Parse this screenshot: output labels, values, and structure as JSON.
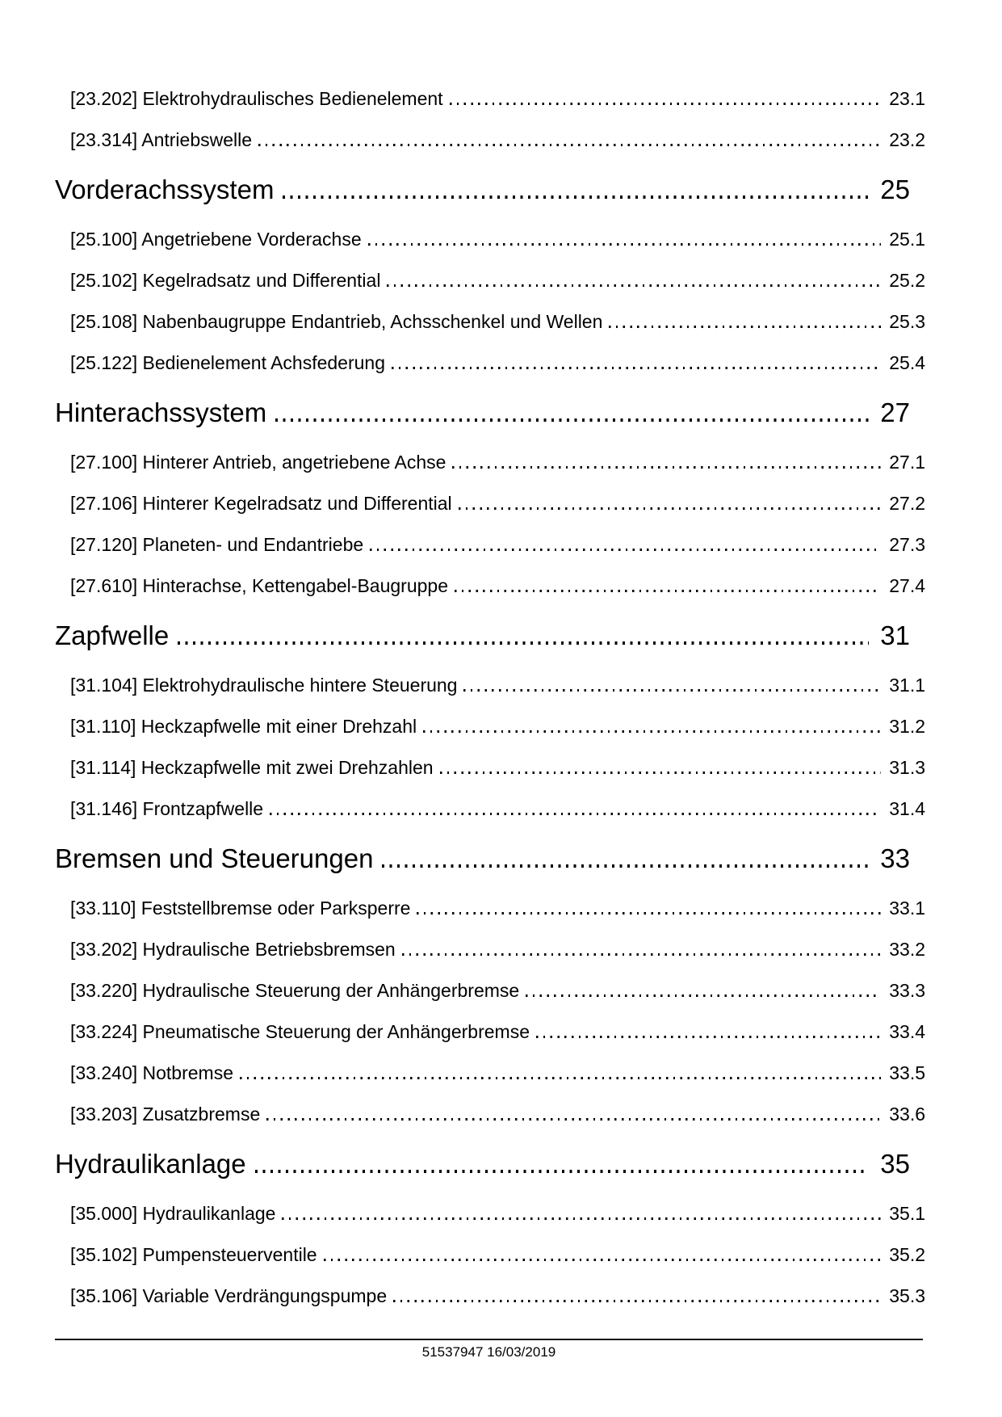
{
  "colors": {
    "text": "#000000",
    "background": "#ffffff",
    "footer_rule": "#141414"
  },
  "toc": {
    "items": [
      {
        "level": "entry",
        "label": "[23.202] Elektrohydraulisches Bedienelement",
        "page": "23.1"
      },
      {
        "level": "entry",
        "label": "[23.314] Antriebswelle",
        "page": "23.2"
      },
      {
        "level": "section",
        "label": "Vorderachssystem",
        "page": "25"
      },
      {
        "level": "entry",
        "label": "[25.100] Angetriebene Vorderachse",
        "page": "25.1"
      },
      {
        "level": "entry",
        "label": "[25.102] Kegelradsatz und Differential",
        "page": "25.2"
      },
      {
        "level": "entry",
        "label": "[25.108] Nabenbaugruppe Endantrieb, Achsschenkel und Wellen",
        "page": "25.3"
      },
      {
        "level": "entry",
        "label": "[25.122] Bedienelement Achsfederung",
        "page": "25.4"
      },
      {
        "level": "section",
        "label": "Hinterachssystem",
        "page": "27"
      },
      {
        "level": "entry",
        "label": "[27.100] Hinterer Antrieb, angetriebene Achse",
        "page": "27.1"
      },
      {
        "level": "entry",
        "label": "[27.106] Hinterer Kegelradsatz und Differential",
        "page": "27.2"
      },
      {
        "level": "entry",
        "label": "[27.120] Planeten- und Endantriebe",
        "page": "27.3"
      },
      {
        "level": "entry",
        "label": "[27.610] Hinterachse, Kettengabel-Baugruppe",
        "page": "27.4"
      },
      {
        "level": "section",
        "label": "Zapfwelle",
        "page": "31"
      },
      {
        "level": "entry",
        "label": "[31.104] Elektrohydraulische hintere Steuerung",
        "page": "31.1"
      },
      {
        "level": "entry",
        "label": "[31.110] Heckzapfwelle mit einer Drehzahl",
        "page": "31.2"
      },
      {
        "level": "entry",
        "label": "[31.114] Heckzapfwelle mit zwei Drehzahlen",
        "page": "31.3"
      },
      {
        "level": "entry",
        "label": "[31.146] Frontzapfwelle",
        "page": "31.4"
      },
      {
        "level": "section",
        "label": "Bremsen und Steuerungen",
        "page": "33"
      },
      {
        "level": "entry",
        "label": "[33.110] Feststellbremse oder Parksperre",
        "page": "33.1"
      },
      {
        "level": "entry",
        "label": "[33.202] Hydraulische Betriebsbremsen",
        "page": "33.2"
      },
      {
        "level": "entry",
        "label": "[33.220] Hydraulische Steuerung der Anhängerbremse",
        "page": "33.3"
      },
      {
        "level": "entry",
        "label": "[33.224] Pneumatische Steuerung der Anhängerbremse",
        "page": "33.4"
      },
      {
        "level": "entry",
        "label": "[33.240] Notbremse",
        "page": "33.5"
      },
      {
        "level": "entry",
        "label": "[33.203] Zusatzbremse",
        "page": "33.6"
      },
      {
        "level": "section",
        "label": "Hydraulikanlage",
        "page": "35"
      },
      {
        "level": "entry",
        "label": "[35.000] Hydraulikanlage",
        "page": "35.1"
      },
      {
        "level": "entry",
        "label": "[35.102] Pumpensteuerventile",
        "page": "35.2"
      },
      {
        "level": "entry",
        "label": "[35.106] Variable Verdrängungspumpe",
        "page": "35.3"
      }
    ]
  },
  "footer": {
    "part_number": "51537947",
    "date": "16/03/2019"
  }
}
